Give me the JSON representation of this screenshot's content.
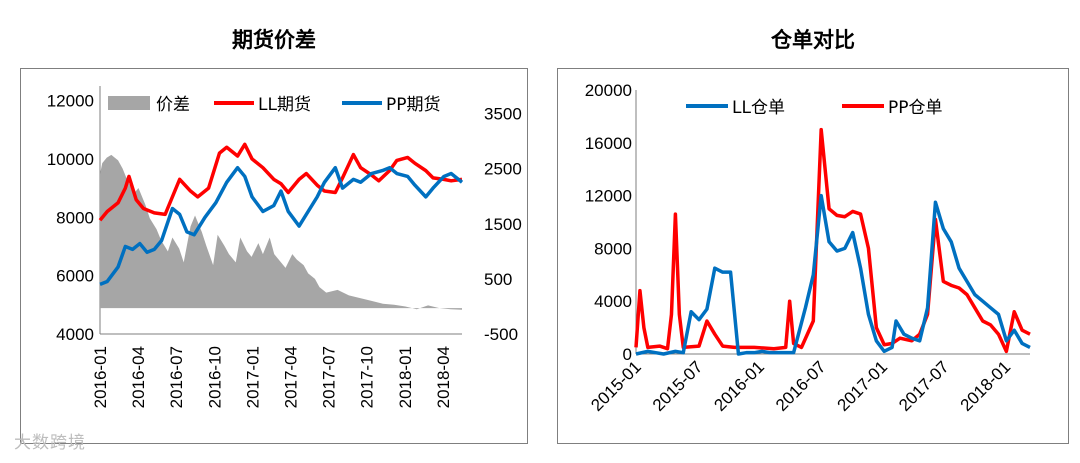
{
  "watermark": "大数跨境",
  "chart_data": [
    {
      "type": "line",
      "title": "期货价差",
      "x_tick_labels": [
        "2016-01",
        "2016-04",
        "2016-07",
        "2016-10",
        "2017-01",
        "2017-04",
        "2017-07",
        "2017-10",
        "2018-01",
        "2018-04"
      ],
      "y_left": {
        "ticks": [
          4000,
          6000,
          8000,
          10000,
          12000
        ],
        "ylim": [
          4000,
          12500
        ]
      },
      "y_right": {
        "ticks": [
          -500,
          500,
          1500,
          2500,
          3500
        ],
        "ylim": [
          -500,
          4000
        ]
      },
      "series": [
        {
          "name": "价差",
          "axis": "right",
          "kind": "area",
          "color": "#a6a6a6",
          "points": [
            [
              0,
              2400
            ],
            [
              0.01,
              2600
            ],
            [
              0.03,
              2700
            ],
            [
              0.05,
              2750
            ],
            [
              0.08,
              2650
            ],
            [
              0.1,
              2500
            ],
            [
              0.12,
              2300
            ],
            [
              0.15,
              2050
            ],
            [
              0.17,
              2150
            ],
            [
              0.2,
              1850
            ],
            [
              0.22,
              1600
            ],
            [
              0.25,
              1400
            ],
            [
              0.27,
              1200
            ],
            [
              0.3,
              1000
            ],
            [
              0.32,
              1250
            ],
            [
              0.35,
              1050
            ],
            [
              0.37,
              800
            ],
            [
              0.4,
              1450
            ],
            [
              0.42,
              1650
            ],
            [
              0.45,
              1350
            ],
            [
              0.47,
              1100
            ],
            [
              0.5,
              750
            ],
            [
              0.52,
              1300
            ],
            [
              0.55,
              1100
            ],
            [
              0.57,
              950
            ],
            [
              0.6,
              800
            ],
            [
              0.62,
              1250
            ],
            [
              0.65,
              1000
            ],
            [
              0.67,
              900
            ],
            [
              0.7,
              1150
            ],
            [
              0.72,
              950
            ],
            [
              0.75,
              1250
            ],
            [
              0.77,
              950
            ],
            [
              0.8,
              800
            ],
            [
              0.82,
              700
            ],
            [
              0.85,
              950
            ],
            [
              0.87,
              850
            ],
            [
              0.9,
              750
            ],
            [
              0.92,
              600
            ],
            [
              0.95,
              500
            ],
            [
              0.97,
              350
            ],
            [
              1.0,
              250
            ],
            [
              1.05,
              300
            ],
            [
              1.1,
              200
            ],
            [
              1.15,
              150
            ],
            [
              1.2,
              100
            ],
            [
              1.25,
              50
            ],
            [
              1.3,
              30
            ],
            [
              1.35,
              0
            ],
            [
              1.4,
              -50
            ],
            [
              1.45,
              20
            ],
            [
              1.5,
              -30
            ],
            [
              1.55,
              -50
            ],
            [
              1.6,
              -60
            ]
          ]
        },
        {
          "name": "LL期货",
          "axis": "left",
          "kind": "line",
          "color": "#ff0000",
          "points": [
            [
              0,
              7900
            ],
            [
              0.02,
              8200
            ],
            [
              0.05,
              8500
            ],
            [
              0.07,
              9000
            ],
            [
              0.08,
              9400
            ],
            [
              0.1,
              8600
            ],
            [
              0.12,
              8300
            ],
            [
              0.15,
              8150
            ],
            [
              0.18,
              8100
            ],
            [
              0.2,
              8700
            ],
            [
              0.22,
              9300
            ],
            [
              0.25,
              8900
            ],
            [
              0.27,
              8700
            ],
            [
              0.3,
              9000
            ],
            [
              0.33,
              10200
            ],
            [
              0.35,
              10400
            ],
            [
              0.38,
              10100
            ],
            [
              0.4,
              10500
            ],
            [
              0.42,
              10000
            ],
            [
              0.45,
              9700
            ],
            [
              0.48,
              9300
            ],
            [
              0.5,
              9150
            ],
            [
              0.52,
              8850
            ],
            [
              0.55,
              9300
            ],
            [
              0.57,
              9500
            ],
            [
              0.6,
              9100
            ],
            [
              0.62,
              8900
            ],
            [
              0.65,
              8850
            ],
            [
              0.67,
              9350
            ],
            [
              0.7,
              10150
            ],
            [
              0.72,
              9700
            ],
            [
              0.75,
              9450
            ],
            [
              0.77,
              9250
            ],
            [
              0.8,
              9600
            ],
            [
              0.82,
              9950
            ],
            [
              0.85,
              10050
            ],
            [
              0.87,
              9850
            ],
            [
              0.9,
              9600
            ],
            [
              0.92,
              9350
            ],
            [
              0.95,
              9300
            ],
            [
              0.97,
              9250
            ],
            [
              1.0,
              9300
            ]
          ]
        },
        {
          "name": "PP期货",
          "axis": "left",
          "kind": "line",
          "color": "#0070c0",
          "points": [
            [
              0,
              5700
            ],
            [
              0.02,
              5800
            ],
            [
              0.05,
              6300
            ],
            [
              0.07,
              7000
            ],
            [
              0.09,
              6900
            ],
            [
              0.11,
              7100
            ],
            [
              0.13,
              6800
            ],
            [
              0.15,
              6900
            ],
            [
              0.17,
              7200
            ],
            [
              0.2,
              8300
            ],
            [
              0.22,
              8100
            ],
            [
              0.24,
              7500
            ],
            [
              0.26,
              7400
            ],
            [
              0.29,
              8000
            ],
            [
              0.32,
              8500
            ],
            [
              0.35,
              9200
            ],
            [
              0.38,
              9700
            ],
            [
              0.4,
              9400
            ],
            [
              0.42,
              8700
            ],
            [
              0.45,
              8200
            ],
            [
              0.48,
              8400
            ],
            [
              0.5,
              8900
            ],
            [
              0.52,
              8200
            ],
            [
              0.55,
              7700
            ],
            [
              0.57,
              8100
            ],
            [
              0.6,
              8700
            ],
            [
              0.62,
              9200
            ],
            [
              0.65,
              9700
            ],
            [
              0.67,
              9000
            ],
            [
              0.7,
              9300
            ],
            [
              0.72,
              9200
            ],
            [
              0.75,
              9500
            ],
            [
              0.78,
              9600
            ],
            [
              0.8,
              9700
            ],
            [
              0.82,
              9500
            ],
            [
              0.85,
              9400
            ],
            [
              0.87,
              9100
            ],
            [
              0.9,
              8700
            ],
            [
              0.92,
              9000
            ],
            [
              0.95,
              9400
            ],
            [
              0.97,
              9500
            ],
            [
              1.0,
              9200
            ]
          ]
        }
      ]
    },
    {
      "type": "line",
      "title": "仓单对比",
      "x_tick_labels": [
        "2015-01",
        "2015-07",
        "2016-01",
        "2016-07",
        "2017-01",
        "2017-07",
        "2018-01"
      ],
      "y_left": {
        "ticks": [
          0,
          4000,
          8000,
          12000,
          16000,
          20000
        ],
        "ylim": [
          0,
          20000
        ]
      },
      "series": [
        {
          "name": "LL仓单",
          "kind": "line",
          "color": "#0070c0",
          "points": [
            [
              0,
              0
            ],
            [
              0.03,
              200
            ],
            [
              0.05,
              100
            ],
            [
              0.07,
              0
            ],
            [
              0.1,
              200
            ],
            [
              0.12,
              100
            ],
            [
              0.14,
              3200
            ],
            [
              0.16,
              2600
            ],
            [
              0.18,
              3400
            ],
            [
              0.2,
              6500
            ],
            [
              0.22,
              6200
            ],
            [
              0.24,
              6200
            ],
            [
              0.26,
              0
            ],
            [
              0.28,
              100
            ],
            [
              0.3,
              100
            ],
            [
              0.32,
              200
            ],
            [
              0.34,
              100
            ],
            [
              0.36,
              100
            ],
            [
              0.4,
              100
            ],
            [
              0.43,
              3500
            ],
            [
              0.45,
              6000
            ],
            [
              0.47,
              12000
            ],
            [
              0.49,
              8500
            ],
            [
              0.51,
              7800
            ],
            [
              0.53,
              8000
            ],
            [
              0.55,
              9200
            ],
            [
              0.57,
              6500
            ],
            [
              0.59,
              3000
            ],
            [
              0.61,
              1000
            ],
            [
              0.63,
              200
            ],
            [
              0.65,
              500
            ],
            [
              0.66,
              2500
            ],
            [
              0.68,
              1500
            ],
            [
              0.7,
              1200
            ],
            [
              0.72,
              1000
            ],
            [
              0.74,
              3500
            ],
            [
              0.76,
              11500
            ],
            [
              0.78,
              9500
            ],
            [
              0.8,
              8500
            ],
            [
              0.82,
              6500
            ],
            [
              0.84,
              5500
            ],
            [
              0.86,
              4500
            ],
            [
              0.88,
              4000
            ],
            [
              0.9,
              3500
            ],
            [
              0.92,
              3000
            ],
            [
              0.94,
              1000
            ],
            [
              0.96,
              1800
            ],
            [
              0.98,
              800
            ],
            [
              1.0,
              500
            ]
          ]
        },
        {
          "name": "PP仓单",
          "kind": "line",
          "color": "#ff0000",
          "points": [
            [
              0,
              500
            ],
            [
              0.01,
              4800
            ],
            [
              0.02,
              2000
            ],
            [
              0.03,
              500
            ],
            [
              0.06,
              600
            ],
            [
              0.08,
              400
            ],
            [
              0.09,
              3000
            ],
            [
              0.1,
              10600
            ],
            [
              0.11,
              3000
            ],
            [
              0.12,
              500
            ],
            [
              0.16,
              600
            ],
            [
              0.18,
              2500
            ],
            [
              0.2,
              1500
            ],
            [
              0.22,
              600
            ],
            [
              0.25,
              500
            ],
            [
              0.3,
              500
            ],
            [
              0.35,
              400
            ],
            [
              0.38,
              500
            ],
            [
              0.39,
              4000
            ],
            [
              0.4,
              800
            ],
            [
              0.42,
              500
            ],
            [
              0.45,
              2500
            ],
            [
              0.47,
              17000
            ],
            [
              0.49,
              11000
            ],
            [
              0.51,
              10500
            ],
            [
              0.53,
              10400
            ],
            [
              0.55,
              10800
            ],
            [
              0.57,
              10600
            ],
            [
              0.59,
              8000
            ],
            [
              0.61,
              2000
            ],
            [
              0.63,
              700
            ],
            [
              0.65,
              800
            ],
            [
              0.67,
              1200
            ],
            [
              0.7,
              1000
            ],
            [
              0.72,
              1500
            ],
            [
              0.74,
              3000
            ],
            [
              0.76,
              10200
            ],
            [
              0.78,
              5500
            ],
            [
              0.8,
              5200
            ],
            [
              0.82,
              5000
            ],
            [
              0.84,
              4500
            ],
            [
              0.86,
              3500
            ],
            [
              0.88,
              2500
            ],
            [
              0.9,
              2200
            ],
            [
              0.92,
              1500
            ],
            [
              0.94,
              200
            ],
            [
              0.96,
              3200
            ],
            [
              0.98,
              1800
            ],
            [
              1.0,
              1500
            ]
          ]
        }
      ]
    }
  ]
}
